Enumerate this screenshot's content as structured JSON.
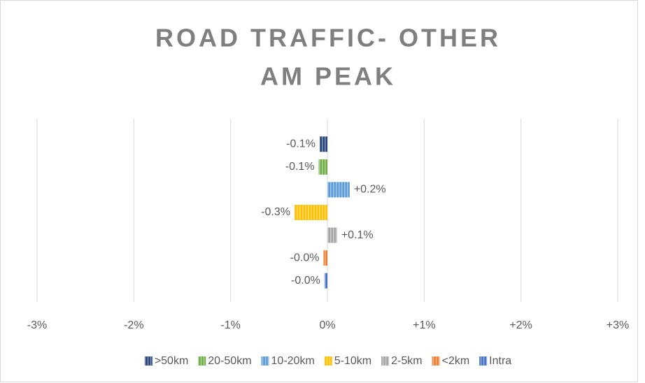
{
  "chart_data": {
    "type": "bar",
    "orientation": "horizontal",
    "title": [
      "ROAD TRAFFIC- OTHER",
      "AM PEAK"
    ],
    "categories": [
      ">50km",
      "20-50km",
      "10-20km",
      "5-10km",
      "2-5km",
      "<2km",
      "Intra"
    ],
    "values": [
      -0.08,
      -0.09,
      0.23,
      -0.34,
      0.1,
      -0.04,
      -0.03
    ],
    "value_labels": [
      "-0.1%",
      "-0.1%",
      "+0.2%",
      "-0.3%",
      "+0.1%",
      "-0.0%",
      "-0.0%"
    ],
    "colors": [
      "#264478",
      "#70ad47",
      "#5b9bd5",
      "#ffc000",
      "#a5a5a5",
      "#ed7d31",
      "#4472c4"
    ],
    "xlim": [
      -3,
      3
    ],
    "xticks": [
      {
        "value": -3,
        "label": "-3%"
      },
      {
        "value": -2,
        "label": "-2%"
      },
      {
        "value": -1,
        "label": "-1%"
      },
      {
        "value": 0,
        "label": "0%"
      },
      {
        "value": 1,
        "label": "+1%"
      },
      {
        "value": 2,
        "label": "+2%"
      },
      {
        "value": 3,
        "label": "+3%"
      }
    ],
    "grid": true,
    "legend": "bottom"
  }
}
